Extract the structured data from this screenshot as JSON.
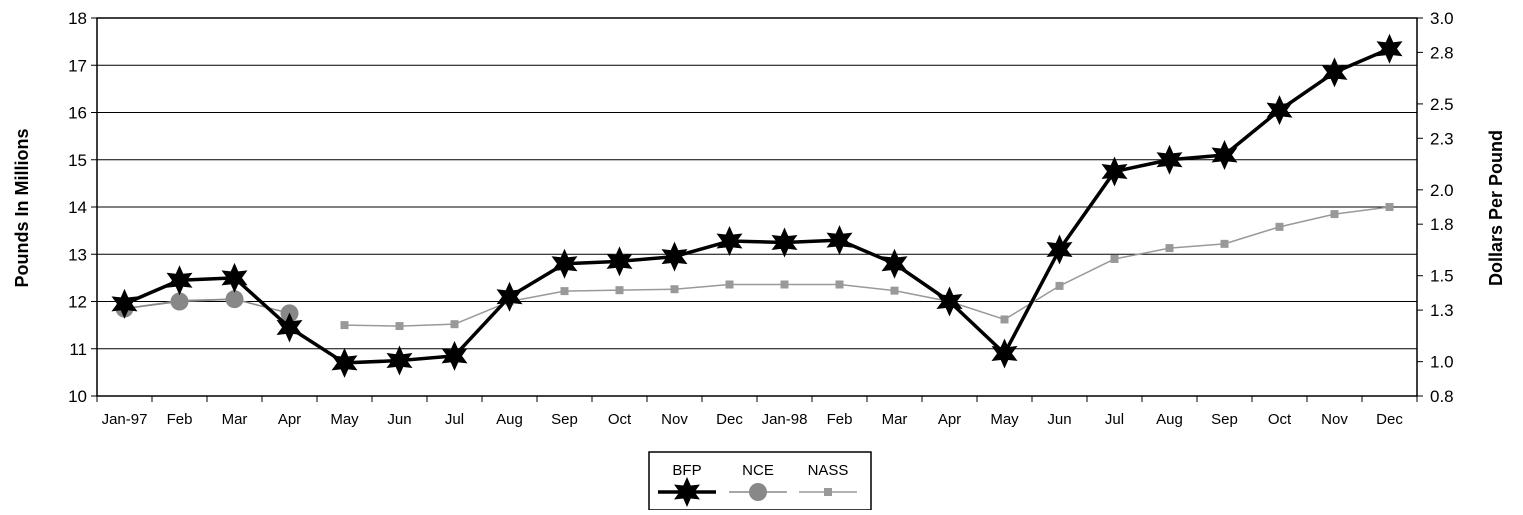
{
  "chart_data": {
    "type": "line",
    "title": "",
    "categories": [
      "Jan-97",
      "Feb",
      "Mar",
      "Apr",
      "May",
      "Jun",
      "Jul",
      "Aug",
      "Sep",
      "Oct",
      "Nov",
      "Dec",
      "Jan-98",
      "Feb",
      "Mar",
      "Apr",
      "May",
      "Jun",
      "Jul",
      "Aug",
      "Sep",
      "Oct",
      "Nov",
      "Dec"
    ],
    "y_left": {
      "label": "Pounds In Millions",
      "range": [
        10,
        18
      ],
      "ticks": [
        "10",
        "11",
        "12",
        "13",
        "14",
        "15",
        "16",
        "17",
        "18"
      ]
    },
    "y_right": {
      "label": "Dollars Per Pound",
      "range": [
        0.8,
        3.0
      ],
      "ticks": [
        "0.8",
        "1.0",
        "1.3",
        "1.5",
        "1.8",
        "2.0",
        "2.3",
        "2.5",
        "2.8",
        "3.0"
      ]
    },
    "grid": "horizontal",
    "legend_position": "bottom-center",
    "series": [
      {
        "name": "BFP",
        "axis": "left",
        "color": "#000000",
        "marker": "star",
        "values": [
          11.95,
          12.45,
          12.5,
          11.45,
          10.7,
          10.75,
          10.85,
          12.1,
          12.8,
          12.85,
          12.95,
          13.28,
          13.25,
          13.3,
          12.8,
          12.0,
          10.9,
          13.1,
          14.75,
          15.0,
          15.1,
          16.05,
          16.85,
          17.35
        ]
      },
      {
        "name": "NCE",
        "axis": "left",
        "color": "#888888",
        "marker": "circle",
        "values": [
          11.85,
          12.0,
          12.05,
          11.75,
          null,
          null,
          null,
          null,
          null,
          null,
          null,
          null,
          null,
          null,
          null,
          null,
          null,
          null,
          null,
          null,
          null,
          null,
          null,
          null
        ]
      },
      {
        "name": "NASS",
        "axis": "left",
        "color": "#999999",
        "marker": "square",
        "values": [
          11.85,
          12.02,
          12.05,
          null,
          11.5,
          11.48,
          11.52,
          12.0,
          12.22,
          12.24,
          12.26,
          12.36,
          12.36,
          12.36,
          12.23,
          12.0,
          11.62,
          12.33,
          12.9,
          13.13,
          13.22,
          13.58,
          13.85,
          14.0
        ]
      }
    ]
  }
}
